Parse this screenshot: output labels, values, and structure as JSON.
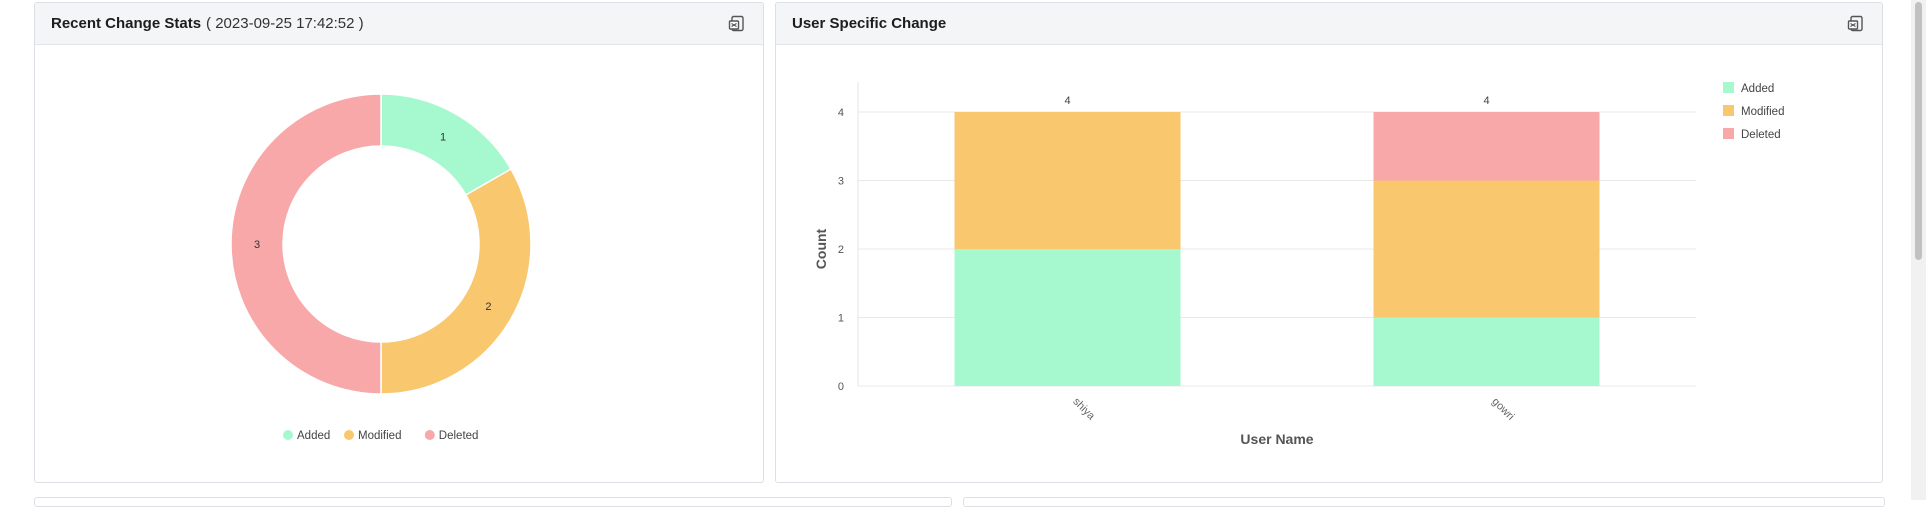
{
  "panels": {
    "left": {
      "title": "Recent Change Stats",
      "subtitle": "( 2023-09-25 17:42:52 )",
      "export_icon": "export-icon"
    },
    "right": {
      "title": "User Specific Change",
      "export_icon": "export-icon"
    }
  },
  "colors": {
    "Added": "#a6f9cf",
    "Modified": "#f9c76e",
    "Deleted": "#f8a8a8"
  },
  "chart_data": [
    {
      "type": "pie",
      "title": "",
      "donut": true,
      "categories": [
        "Added",
        "Modified",
        "Deleted"
      ],
      "values": [
        1,
        2,
        3
      ],
      "data_labels": [
        "1",
        "2",
        "3"
      ],
      "legend": {
        "position": "bottom",
        "items": [
          "Added",
          "Modified",
          "Deleted"
        ]
      }
    },
    {
      "type": "bar",
      "stacked": true,
      "title": "",
      "categories": [
        "shiya",
        "gowri"
      ],
      "series": [
        {
          "name": "Added",
          "values": [
            2,
            1
          ]
        },
        {
          "name": "Modified",
          "values": [
            2,
            2
          ]
        },
        {
          "name": "Deleted",
          "values": [
            0,
            1
          ]
        }
      ],
      "totals": [
        4,
        4
      ],
      "xlabel": "User Name",
      "ylabel": "Count",
      "ylim": [
        0,
        4
      ],
      "yticks": [
        0,
        1,
        2,
        3,
        4
      ],
      "grid": true,
      "legend": {
        "position": "top-right",
        "items": [
          "Added",
          "Modified",
          "Deleted"
        ]
      }
    }
  ]
}
